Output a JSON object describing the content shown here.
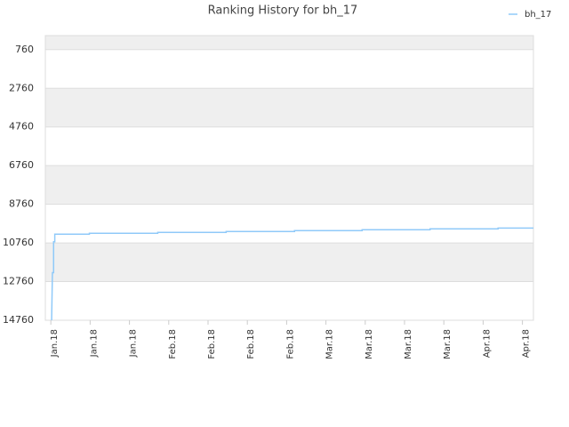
{
  "chart_data": {
    "type": "line",
    "title": "Ranking History for bh_17",
    "x": [
      0.02,
      0.04,
      0.07,
      0.07,
      0.1,
      0.1,
      0.98,
      0.98,
      2.72,
      2.72,
      4.46,
      4.46,
      6.2,
      6.2,
      7.92,
      7.92,
      9.65,
      9.65,
      11.38,
      11.38,
      12.28
    ],
    "series": [
      {
        "name": "bh_17",
        "color": "#90caf9",
        "values": [
          14760,
          12300,
          12300,
          10700,
          10700,
          10305,
          10305,
          10260,
          10260,
          10215,
          10215,
          10170,
          10170,
          10124,
          10124,
          10080,
          10080,
          10033,
          10033,
          9990,
          9990
        ]
      }
    ],
    "xlim": [
      -0.14,
      12.28
    ],
    "xticks": [
      {
        "value": 0,
        "label": "Jan.18"
      },
      {
        "value": 1,
        "label": "Jan.18"
      },
      {
        "value": 2,
        "label": "Jan.18"
      },
      {
        "value": 3,
        "label": "Feb.18"
      },
      {
        "value": 4,
        "label": "Feb.18"
      },
      {
        "value": 5,
        "label": "Feb.18"
      },
      {
        "value": 6,
        "label": "Feb.18"
      },
      {
        "value": 7,
        "label": "Mar.18"
      },
      {
        "value": 8,
        "label": "Mar.18"
      },
      {
        "value": 9,
        "label": "Mar.18"
      },
      {
        "value": 10,
        "label": "Mar.18"
      },
      {
        "value": 11,
        "label": "Apr.18"
      },
      {
        "value": 12,
        "label": "Apr.18"
      }
    ],
    "ylim": [
      14760,
      33
    ],
    "yticks": [
      760,
      2760,
      4760,
      6760,
      8760,
      10760,
      12760,
      14760
    ],
    "grid": true,
    "legend": "top-right"
  }
}
